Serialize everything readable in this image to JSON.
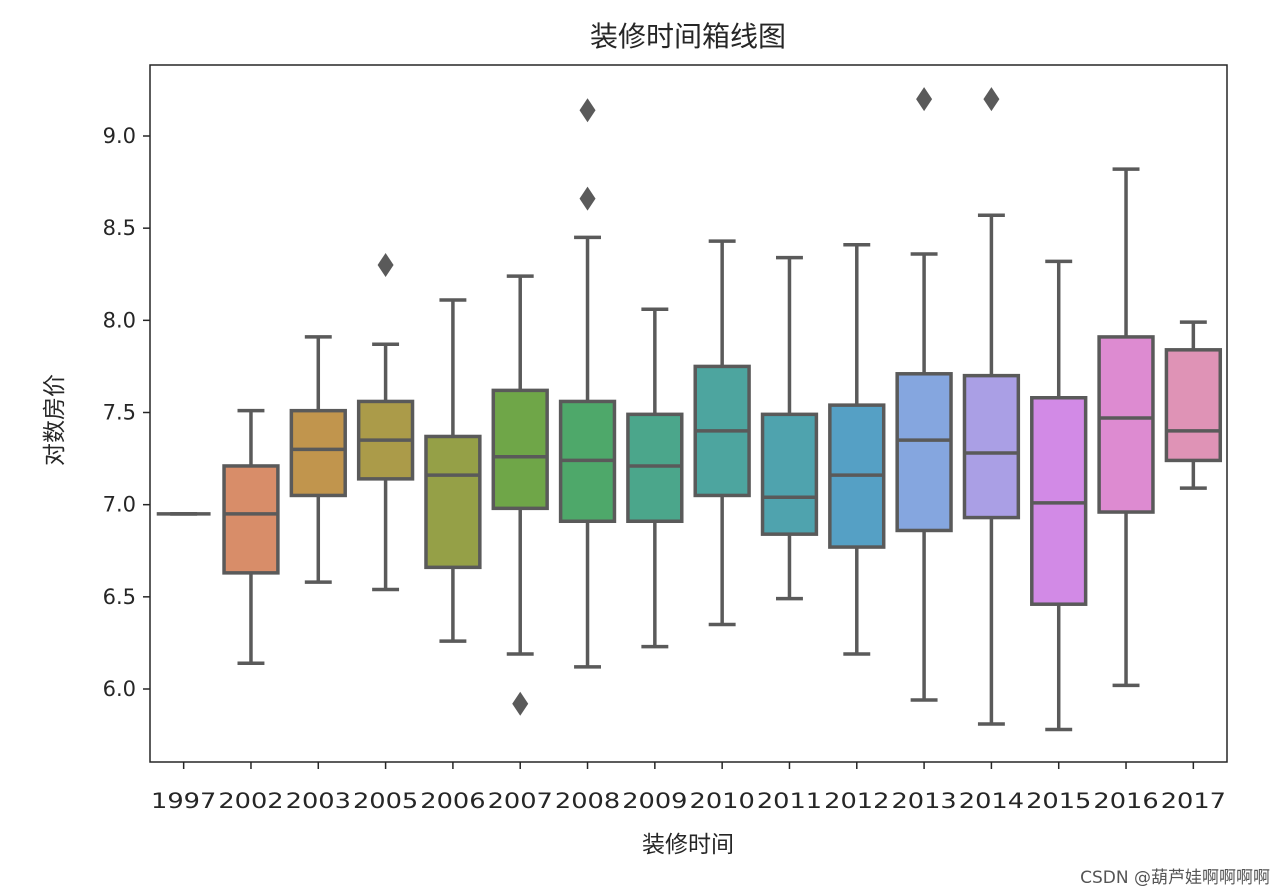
{
  "chart_data": {
    "type": "box",
    "title": "装修时间箱线图",
    "xlabel": "装修时间",
    "ylabel": "对数房价",
    "ylim": [
      5.6,
      9.4
    ],
    "yticks": [
      6.0,
      6.5,
      7.0,
      7.5,
      8.0,
      8.5,
      9.0
    ],
    "ytick_labels": [
      "6.0",
      "6.5",
      "7.0",
      "7.5",
      "8.0",
      "8.5",
      "9.0"
    ],
    "grid": false,
    "categories": [
      "1997",
      "2002",
      "2003",
      "2005",
      "2006",
      "2007",
      "2008",
      "2009",
      "2010",
      "2011",
      "2012",
      "2013",
      "2014",
      "2015",
      "2016",
      "2017"
    ],
    "boxes": [
      {
        "min": 6.95,
        "q1": 6.95,
        "median": 6.95,
        "q3": 6.95,
        "max": 6.95,
        "outliers": [],
        "color": "#e8776d"
      },
      {
        "min": 6.14,
        "q1": 6.63,
        "median": 6.95,
        "q3": 7.21,
        "max": 7.51,
        "outliers": [],
        "color": "#d88d69"
      },
      {
        "min": 6.58,
        "q1": 7.05,
        "median": 7.3,
        "q3": 7.51,
        "max": 7.91,
        "outliers": [],
        "color": "#c1954d"
      },
      {
        "min": 6.54,
        "q1": 7.14,
        "median": 7.35,
        "q3": 7.56,
        "max": 7.87,
        "outliers": [
          8.3
        ],
        "color": "#ab9b49"
      },
      {
        "min": 6.26,
        "q1": 6.66,
        "median": 7.16,
        "q3": 7.37,
        "max": 8.11,
        "outliers": [],
        "color": "#95a047"
      },
      {
        "min": 6.19,
        "q1": 6.98,
        "median": 7.26,
        "q3": 7.62,
        "max": 8.24,
        "outliers": [
          5.92
        ],
        "color": "#6fa648"
      },
      {
        "min": 6.12,
        "q1": 6.91,
        "median": 7.24,
        "q3": 7.56,
        "max": 8.45,
        "outliers": [
          8.66,
          9.14
        ],
        "color": "#4ea86a"
      },
      {
        "min": 6.23,
        "q1": 6.91,
        "median": 7.21,
        "q3": 7.49,
        "max": 8.06,
        "outliers": [],
        "color": "#4ba68b"
      },
      {
        "min": 6.35,
        "q1": 7.05,
        "median": 7.4,
        "q3": 7.75,
        "max": 8.43,
        "outliers": [],
        "color": "#4da59f"
      },
      {
        "min": 6.49,
        "q1": 6.84,
        "median": 7.04,
        "q3": 7.49,
        "max": 8.34,
        "outliers": [],
        "color": "#4fa3ae"
      },
      {
        "min": 6.19,
        "q1": 6.77,
        "median": 7.16,
        "q3": 7.54,
        "max": 8.41,
        "outliers": [],
        "color": "#55a0c5"
      },
      {
        "min": 5.94,
        "q1": 6.86,
        "median": 7.35,
        "q3": 7.71,
        "max": 8.36,
        "outliers": [
          9.2
        ],
        "color": "#85a6df"
      },
      {
        "min": 5.81,
        "q1": 6.93,
        "median": 7.28,
        "q3": 7.7,
        "max": 8.57,
        "outliers": [
          9.2
        ],
        "color": "#aa9fe5"
      },
      {
        "min": 5.78,
        "q1": 6.46,
        "median": 7.01,
        "q3": 7.58,
        "max": 8.32,
        "outliers": [],
        "color": "#d28ae6"
      },
      {
        "min": 6.02,
        "q1": 6.96,
        "median": 7.47,
        "q3": 7.91,
        "max": 8.82,
        "outliers": [],
        "color": "#dd8bd1"
      },
      {
        "min": 7.09,
        "q1": 7.24,
        "median": 7.4,
        "q3": 7.84,
        "max": 7.99,
        "outliers": [],
        "color": "#df93b6"
      }
    ]
  },
  "watermark": "CSDN @葫芦娃啊啊啊啊"
}
